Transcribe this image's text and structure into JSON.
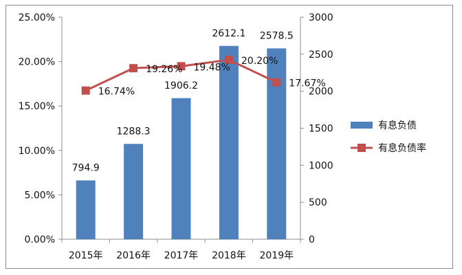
{
  "chart_data": {
    "type": "bar",
    "title": "",
    "categories": [
      "2015年",
      "2016年",
      "2017年",
      "2018年",
      "2019年"
    ],
    "series": [
      {
        "name": "有息负债",
        "type": "bar",
        "axis": "right",
        "color": "#4f81bd",
        "values": [
          794.9,
          1288.3,
          1906.2,
          2612.1,
          2578.5
        ],
        "labels": [
          "794.9",
          "1288.3",
          "1906.2",
          "2612.1",
          "2578.5"
        ]
      },
      {
        "name": "有息负债率",
        "type": "line",
        "axis": "left",
        "color": "#c0504d",
        "values": [
          16.74,
          19.26,
          19.48,
          20.2,
          17.67
        ],
        "labels": [
          "16.74%",
          "19.26%",
          "19.48%",
          "20.20%",
          "17.67%"
        ]
      }
    ],
    "y_left": {
      "lim": [
        0,
        25
      ],
      "ticks": [
        0,
        5,
        10,
        15,
        20,
        25
      ],
      "tick_labels": [
        "0.00%",
        "5.00%",
        "10.00%",
        "15.00%",
        "20.00%",
        "25.00%"
      ]
    },
    "y_right": {
      "lim": [
        0,
        3000
      ],
      "ticks": [
        0,
        500,
        1000,
        1500,
        2000,
        2500,
        3000
      ],
      "tick_labels": [
        "0",
        "500",
        "1000",
        "1500",
        "2000",
        "2500",
        "3000"
      ]
    },
    "grid": false,
    "legend_position": "right"
  }
}
